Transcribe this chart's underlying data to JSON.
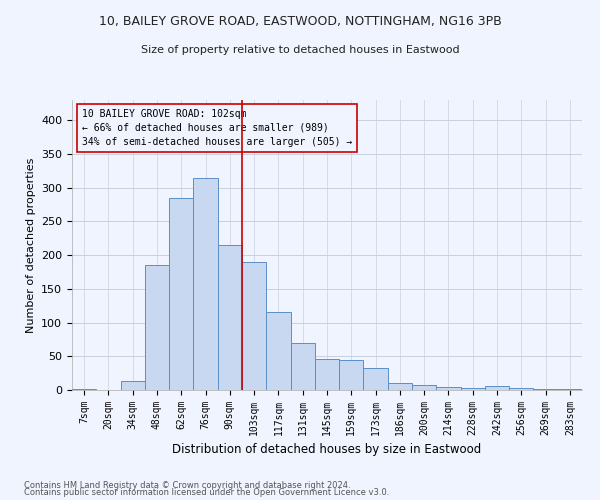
{
  "title1": "10, BAILEY GROVE ROAD, EASTWOOD, NOTTINGHAM, NG16 3PB",
  "title2": "Size of property relative to detached houses in Eastwood",
  "xlabel": "Distribution of detached houses by size in Eastwood",
  "ylabel": "Number of detached properties",
  "footer1": "Contains HM Land Registry data © Crown copyright and database right 2024.",
  "footer2": "Contains public sector information licensed under the Open Government Licence v3.0.",
  "annotation_line1": "10 BAILEY GROVE ROAD: 102sqm",
  "annotation_line2": "← 66% of detached houses are smaller (989)",
  "annotation_line3": "34% of semi-detached houses are larger (505) →",
  "bar_color": "#c8d8f0",
  "bar_edge_color": "#5b8fc9",
  "vline_color": "#cc0000",
  "annotation_box_color": "#cc0000",
  "categories": [
    "7sqm",
    "20sqm",
    "34sqm",
    "48sqm",
    "62sqm",
    "76sqm",
    "90sqm",
    "103sqm",
    "117sqm",
    "131sqm",
    "145sqm",
    "159sqm",
    "173sqm",
    "186sqm",
    "200sqm",
    "214sqm",
    "228sqm",
    "242sqm",
    "256sqm",
    "269sqm",
    "283sqm"
  ],
  "values": [
    2,
    0,
    13,
    185,
    285,
    315,
    215,
    190,
    115,
    70,
    46,
    45,
    32,
    10,
    8,
    5,
    3,
    6,
    3,
    2,
    2
  ],
  "vline_x_index": 7,
  "ylim": [
    0,
    430
  ],
  "yticks": [
    0,
    50,
    100,
    150,
    200,
    250,
    300,
    350,
    400
  ],
  "background_color": "#f0f4ff",
  "grid_color": "#c8d0e0"
}
